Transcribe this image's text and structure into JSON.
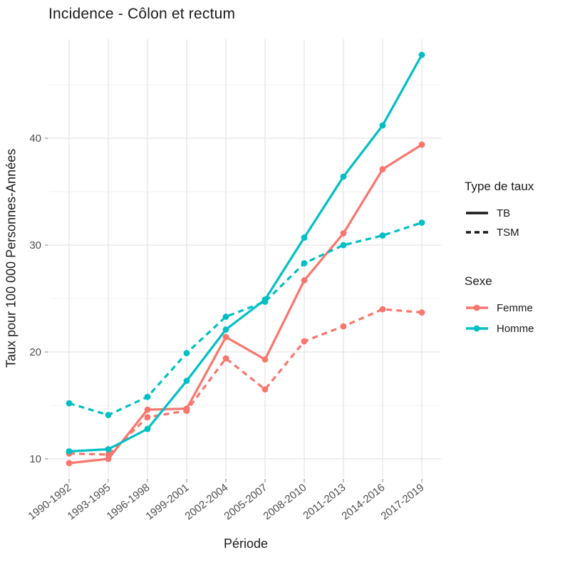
{
  "page_title": "Incidence - Côlon et rectum",
  "chart_data": {
    "type": "line",
    "title": "Incidence - Côlon et rectum",
    "xlabel": "Période",
    "ylabel": "Taux pour 100 000 Personnes-Années",
    "categories": [
      "1990-1992",
      "1993-1995",
      "1996-1998",
      "1999-2001",
      "2002-2004",
      "2005-2007",
      "2008-2010",
      "2011-2013",
      "2014-2016",
      "2017-2019"
    ],
    "yticks": [
      10,
      20,
      30,
      40
    ],
    "yminor_gridlines": [
      15,
      25,
      35,
      45
    ],
    "ylim": [
      8.3,
      49.3
    ],
    "grid": true,
    "legend_position": "right",
    "series": [
      {
        "name": "Femme TB",
        "sexe": "Femme",
        "type_de_taux": "TB",
        "color": "#F8766D",
        "linetype": "solid",
        "values": [
          9.6,
          10.0,
          14.6,
          14.7,
          21.4,
          19.3,
          26.7,
          31.1,
          37.1,
          39.4
        ]
      },
      {
        "name": "Femme TSM",
        "sexe": "Femme",
        "type_de_taux": "TSM",
        "color": "#F8766D",
        "linetype": "dashed",
        "values": [
          10.5,
          10.4,
          13.9,
          14.5,
          19.4,
          16.5,
          21.0,
          22.4,
          24.0,
          23.7
        ]
      },
      {
        "name": "Homme TB",
        "sexe": "Homme",
        "type_de_taux": "TB",
        "color": "#00BFC4",
        "linetype": "solid",
        "values": [
          10.7,
          10.9,
          12.8,
          17.3,
          22.1,
          24.9,
          30.7,
          36.4,
          41.2,
          47.8
        ]
      },
      {
        "name": "Homme TSM",
        "sexe": "Homme",
        "type_de_taux": "TSM",
        "color": "#00BFC4",
        "linetype": "dashed",
        "values": [
          15.2,
          14.1,
          15.8,
          19.9,
          23.3,
          24.7,
          28.3,
          30.0,
          30.9,
          32.1
        ]
      }
    ],
    "legend": {
      "linetype_group": {
        "title": "Type de taux",
        "items": [
          {
            "label": "TB",
            "linetype": "solid"
          },
          {
            "label": "TSM",
            "linetype": "dashed"
          }
        ]
      },
      "color_group": {
        "title": "Sexe",
        "items": [
          {
            "label": "Femme",
            "color": "#F8766D"
          },
          {
            "label": "Homme",
            "color": "#00BFC4"
          }
        ]
      }
    },
    "colors": {
      "femme": "#F8766D",
      "homme": "#00BFC4",
      "legend_key_line": "#1a1a1a",
      "gridline": "#E8E8E8",
      "tick_text": "#4D4D4D",
      "background": "#FFFFFF"
    }
  }
}
